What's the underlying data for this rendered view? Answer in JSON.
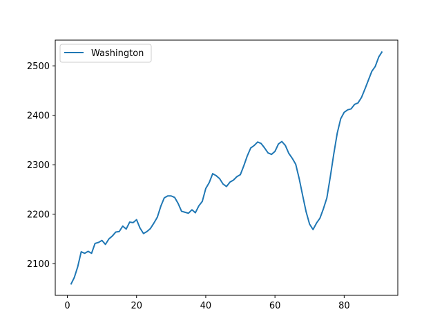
{
  "chart_data": {
    "type": "line",
    "title": "",
    "xlabel": "",
    "ylabel": "",
    "xlim": [
      -3.5,
      95.5
    ],
    "ylim": [
      2036,
      2552
    ],
    "x_ticks": [
      0,
      20,
      40,
      60,
      80
    ],
    "y_ticks": [
      2100,
      2200,
      2300,
      2400,
      2500
    ],
    "grid": false,
    "legend_position": "top-left",
    "colors": {
      "series": "#1f77b4"
    },
    "series": [
      {
        "name": "Washington",
        "x": [
          1,
          2,
          3,
          4,
          5,
          6,
          7,
          8,
          9,
          10,
          11,
          12,
          13,
          14,
          15,
          16,
          17,
          18,
          19,
          20,
          21,
          22,
          23,
          24,
          25,
          26,
          27,
          28,
          29,
          30,
          31,
          32,
          33,
          34,
          35,
          36,
          37,
          38,
          39,
          40,
          41,
          42,
          43,
          44,
          45,
          46,
          47,
          48,
          49,
          50,
          51,
          52,
          53,
          54,
          55,
          56,
          57,
          58,
          59,
          60,
          61,
          62,
          63,
          64,
          65,
          66,
          67,
          68,
          69,
          70,
          71,
          72,
          73,
          74,
          75,
          76,
          77,
          78,
          79,
          80,
          81,
          82,
          83,
          84,
          85,
          86,
          87,
          88,
          89,
          90,
          91
        ],
        "values": [
          2058,
          2072,
          2094,
          2124,
          2121,
          2125,
          2121,
          2141,
          2143,
          2147,
          2139,
          2150,
          2156,
          2164,
          2165,
          2176,
          2170,
          2184,
          2183,
          2189,
          2172,
          2161,
          2165,
          2171,
          2182,
          2194,
          2216,
          2233,
          2237,
          2237,
          2234,
          2222,
          2206,
          2204,
          2202,
          2209,
          2203,
          2217,
          2226,
          2252,
          2264,
          2282,
          2278,
          2272,
          2261,
          2256,
          2265,
          2269,
          2276,
          2280,
          2298,
          2318,
          2334,
          2339,
          2346,
          2343,
          2334,
          2324,
          2321,
          2327,
          2342,
          2347,
          2339,
          2323,
          2313,
          2301,
          2272,
          2238,
          2205,
          2180,
          2169,
          2182,
          2192,
          2211,
          2233,
          2276,
          2322,
          2364,
          2393,
          2406,
          2411,
          2413,
          2422,
          2425,
          2436,
          2453,
          2471,
          2489,
          2499,
          2518,
          2529
        ]
      }
    ]
  }
}
